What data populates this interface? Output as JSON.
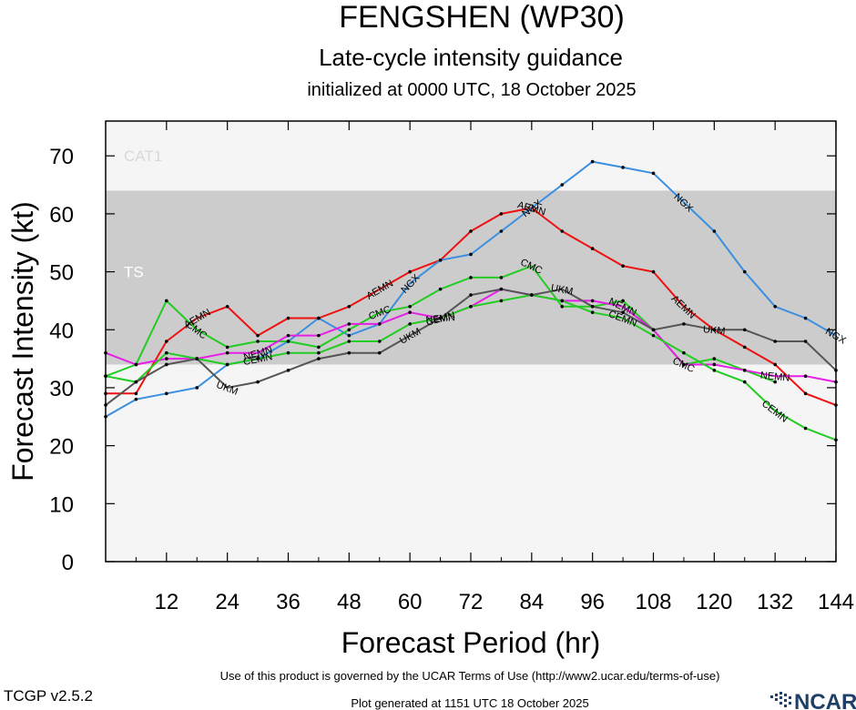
{
  "header": {
    "title": "FENGSHEN (WP30)",
    "subtitle": "Late-cycle intensity guidance",
    "init": "initialized at 0000 UTC, 18 October 2025"
  },
  "footer": {
    "terms": "Use of this product is governed by the UCAR Terms of Use (http://www2.ucar.edu/terms-of-use)",
    "version": "TCGP v2.5.2",
    "generated": "Plot generated at 1151 UTC   18 October 2025",
    "logo": "NCAR"
  },
  "chart_data": {
    "type": "line",
    "xlabel": "Forecast Period (hr)",
    "ylabel": "Forecast Intensity (kt)",
    "xlim": [
      0,
      144
    ],
    "ylim": [
      0,
      76
    ],
    "xticks": [
      12,
      24,
      36,
      48,
      60,
      72,
      84,
      96,
      108,
      120,
      132,
      144
    ],
    "yticks": [
      0,
      10,
      20,
      30,
      40,
      50,
      60,
      70
    ],
    "grid": false,
    "bands": [
      {
        "label": "CAT1",
        "from": 64,
        "to": 76,
        "color": "#f5f5f5"
      },
      {
        "label": "TS",
        "from": 34,
        "to": 64,
        "color": "#cccccc"
      },
      {
        "label": "",
        "from": 0,
        "to": 34,
        "color": "#f5f5f5"
      }
    ],
    "series": [
      {
        "name": "AEMN",
        "color": "#ee1111",
        "labels_at": [
          18,
          54,
          84,
          114
        ],
        "points": [
          [
            0,
            29
          ],
          [
            6,
            29
          ],
          [
            12,
            38
          ],
          [
            18,
            42
          ],
          [
            24,
            44
          ],
          [
            30,
            39
          ],
          [
            36,
            42
          ],
          [
            42,
            42
          ],
          [
            48,
            44
          ],
          [
            54,
            47
          ],
          [
            60,
            50
          ],
          [
            66,
            52
          ],
          [
            72,
            57
          ],
          [
            78,
            60
          ],
          [
            84,
            61
          ],
          [
            90,
            57
          ],
          [
            96,
            54
          ],
          [
            102,
            51
          ],
          [
            108,
            50
          ],
          [
            114,
            44
          ],
          [
            120,
            40
          ],
          [
            126,
            37
          ],
          [
            132,
            34
          ],
          [
            138,
            29
          ],
          [
            144,
            27
          ]
        ]
      },
      {
        "name": "NGX",
        "color": "#3b8fe0",
        "labels_at": [
          60,
          84,
          114,
          144
        ],
        "points": [
          [
            0,
            25
          ],
          [
            6,
            28
          ],
          [
            12,
            29
          ],
          [
            18,
            30
          ],
          [
            24,
            34
          ],
          [
            30,
            35
          ],
          [
            36,
            38
          ],
          [
            42,
            42
          ],
          [
            48,
            39
          ],
          [
            54,
            41
          ],
          [
            60,
            48
          ],
          [
            66,
            52
          ],
          [
            72,
            53
          ],
          [
            78,
            57
          ],
          [
            84,
            61
          ],
          [
            90,
            65
          ],
          [
            96,
            69
          ],
          [
            102,
            68
          ],
          [
            108,
            67
          ],
          [
            114,
            62
          ],
          [
            120,
            57
          ],
          [
            126,
            50
          ],
          [
            132,
            44
          ],
          [
            138,
            42
          ],
          [
            144,
            39
          ]
        ]
      },
      {
        "name": "CMC",
        "color": "#22cc22",
        "labels_at": [
          18,
          54,
          84,
          114
        ],
        "points": [
          [
            0,
            32
          ],
          [
            6,
            34
          ],
          [
            12,
            45
          ],
          [
            18,
            40
          ],
          [
            24,
            37
          ],
          [
            30,
            38
          ],
          [
            36,
            38
          ],
          [
            42,
            37
          ],
          [
            48,
            40
          ],
          [
            54,
            43
          ],
          [
            60,
            44
          ],
          [
            66,
            47
          ],
          [
            72,
            49
          ],
          [
            78,
            49
          ],
          [
            84,
            51
          ],
          [
            90,
            44
          ],
          [
            96,
            44
          ],
          [
            102,
            45
          ],
          [
            108,
            40
          ],
          [
            114,
            34
          ],
          [
            120,
            35
          ],
          [
            126,
            33
          ],
          [
            132,
            31
          ]
        ]
      },
      {
        "name": "NEMN",
        "color": "#e61ee6",
        "labels_at": [
          30,
          66,
          102,
          132
        ],
        "points": [
          [
            0,
            36
          ],
          [
            6,
            34
          ],
          [
            12,
            35
          ],
          [
            18,
            35
          ],
          [
            24,
            36
          ],
          [
            30,
            36
          ],
          [
            36,
            39
          ],
          [
            42,
            39
          ],
          [
            48,
            41
          ],
          [
            54,
            41
          ],
          [
            60,
            43
          ],
          [
            66,
            42
          ],
          [
            72,
            44
          ],
          [
            78,
            47
          ],
          [
            84,
            46
          ],
          [
            90,
            45
          ],
          [
            96,
            45
          ],
          [
            102,
            44
          ],
          [
            108,
            40
          ],
          [
            114,
            34
          ],
          [
            120,
            34
          ],
          [
            126,
            33
          ],
          [
            132,
            32
          ],
          [
            138,
            32
          ],
          [
            144,
            31
          ]
        ]
      },
      {
        "name": "CEMN",
        "color": "#22cc22",
        "labels_at": [
          30,
          66,
          102,
          132
        ],
        "points": [
          [
            0,
            32
          ],
          [
            6,
            31
          ],
          [
            12,
            36
          ],
          [
            18,
            35
          ],
          [
            24,
            34
          ],
          [
            30,
            35
          ],
          [
            36,
            36
          ],
          [
            42,
            36
          ],
          [
            48,
            38
          ],
          [
            54,
            38
          ],
          [
            60,
            41
          ],
          [
            66,
            42
          ],
          [
            72,
            44
          ],
          [
            78,
            45
          ],
          [
            84,
            46
          ],
          [
            90,
            45
          ],
          [
            96,
            43
          ],
          [
            102,
            42
          ],
          [
            108,
            39
          ],
          [
            114,
            36
          ],
          [
            120,
            33
          ],
          [
            126,
            31
          ],
          [
            132,
            26
          ],
          [
            138,
            23
          ],
          [
            144,
            21
          ]
        ]
      },
      {
        "name": "UKM",
        "color": "#555555",
        "labels_at": [
          24,
          60,
          90,
          120
        ],
        "points": [
          [
            0,
            27
          ],
          [
            6,
            31
          ],
          [
            12,
            34
          ],
          [
            18,
            35
          ],
          [
            24,
            30
          ],
          [
            30,
            31
          ],
          [
            36,
            33
          ],
          [
            42,
            35
          ],
          [
            48,
            36
          ],
          [
            54,
            36
          ],
          [
            60,
            39
          ],
          [
            66,
            42
          ],
          [
            72,
            46
          ],
          [
            78,
            47
          ],
          [
            84,
            46
          ],
          [
            90,
            47
          ],
          [
            96,
            44
          ],
          [
            102,
            43
          ],
          [
            108,
            40
          ],
          [
            114,
            41
          ],
          [
            120,
            40
          ],
          [
            126,
            40
          ],
          [
            132,
            38
          ],
          [
            138,
            38
          ],
          [
            144,
            33
          ]
        ]
      }
    ]
  }
}
